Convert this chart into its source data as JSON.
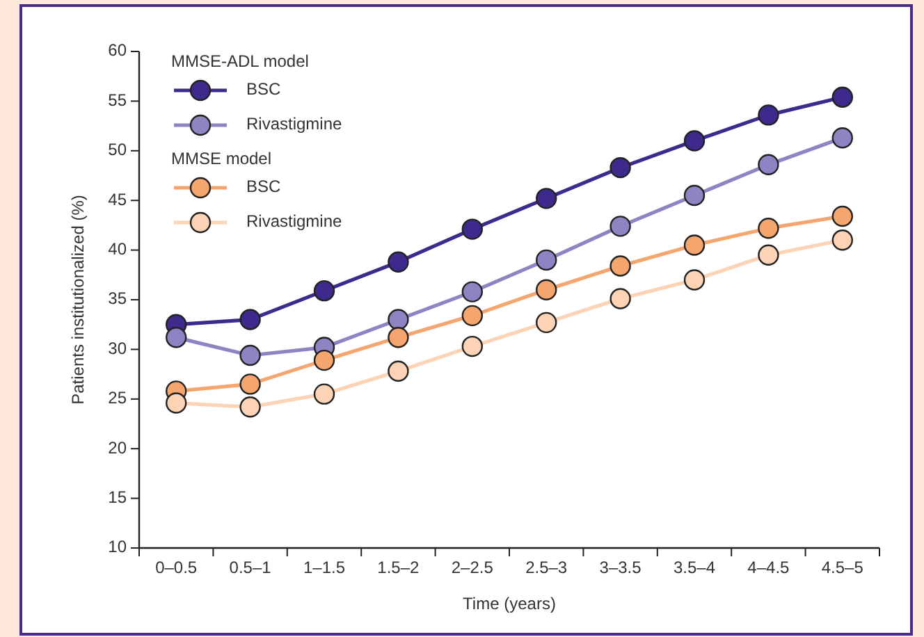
{
  "chart_data": {
    "type": "line",
    "xlabel": "Time (years)",
    "ylabel": "Patients institutionalized (%)",
    "categories": [
      "0–0.5",
      "0.5–1",
      "1–1.5",
      "1.5–2",
      "2–2.5",
      "2.5–3",
      "3–3.5",
      "3.5–4",
      "4–4.5",
      "4.5–5"
    ],
    "ylim": [
      10,
      60
    ],
    "yticks": [
      10,
      15,
      20,
      25,
      30,
      35,
      40,
      45,
      50,
      55,
      60
    ],
    "grid": false,
    "legend": "top left",
    "marker": "circle",
    "line_style": "solid",
    "annotations": [
      "MMSE-ADL model",
      "MMSE model"
    ],
    "series": [
      {
        "name": "BSC",
        "color": "#3d2a8c",
        "values": [
          32.5,
          33.0,
          35.9,
          38.8,
          42.1,
          45.2,
          48.3,
          51.0,
          53.6,
          55.4
        ]
      },
      {
        "name": "Rivastigmine",
        "color": "#8f84c3",
        "values": [
          31.2,
          29.4,
          30.2,
          33.0,
          35.8,
          39.0,
          42.4,
          45.5,
          48.6,
          51.3
        ]
      },
      {
        "name": "BSC",
        "color": "#f5a66f",
        "values": [
          25.8,
          26.5,
          28.9,
          31.2,
          33.4,
          36.0,
          38.4,
          40.5,
          42.2,
          43.4
        ]
      },
      {
        "name": "Rivastigmine",
        "color": "#fcd3b5",
        "values": [
          24.6,
          24.2,
          25.5,
          27.8,
          30.3,
          32.7,
          35.1,
          37.0,
          39.5,
          41.0
        ]
      }
    ]
  }
}
